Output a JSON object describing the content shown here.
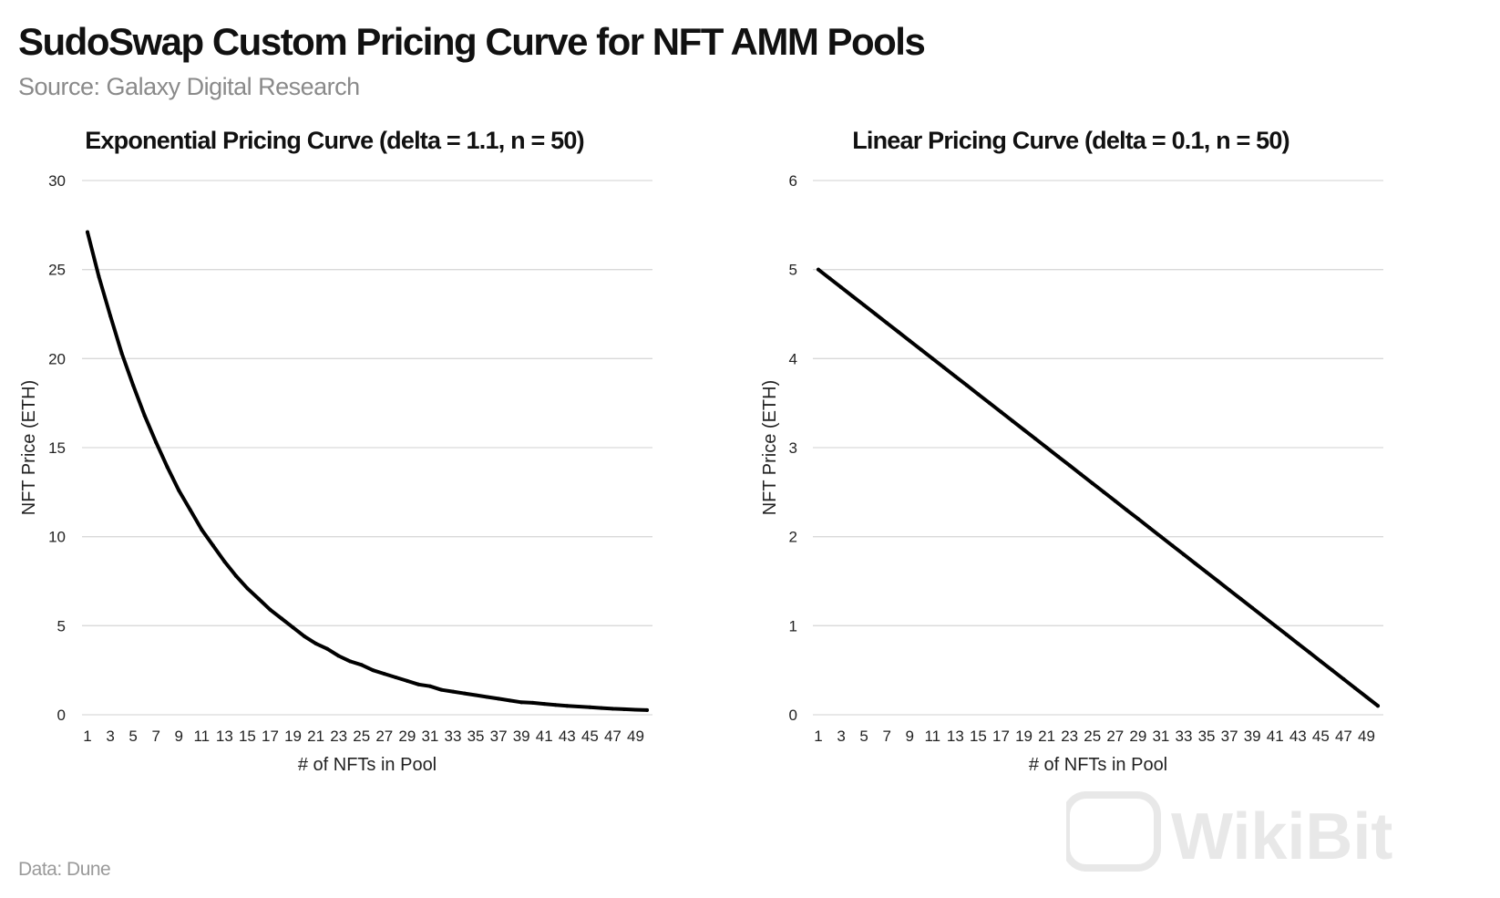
{
  "header": {
    "title": "SudoSwap Custom Pricing Curve for NFT AMM Pools",
    "subtitle": "Source: Galaxy Digital Research"
  },
  "footer": {
    "data_source": "Data: Dune"
  },
  "watermark": {
    "text": "WikiBit",
    "color": "#e8e8e8"
  },
  "chart_data": [
    {
      "type": "line",
      "title": "Exponential Pricing Curve (delta = 1.1, n = 50)",
      "xlabel": "# of NFTs in Pool",
      "ylabel": "NFT Price (ETH)",
      "ylim": [
        0,
        30
      ],
      "yticks": [
        0,
        5,
        10,
        15,
        20,
        25,
        30
      ],
      "xlim": [
        1,
        50
      ],
      "xtick_labels": [
        "1",
        "3",
        "5",
        "7",
        "9",
        "11",
        "13",
        "15",
        "17",
        "19",
        "21",
        "23",
        "25",
        "27",
        "29",
        "31",
        "33",
        "35",
        "37",
        "39",
        "41",
        "43",
        "45",
        "47",
        "49"
      ],
      "grid": true,
      "legend": "none",
      "series": [
        {
          "color": "#000000",
          "x": [
            1,
            2,
            3,
            4,
            5,
            6,
            7,
            8,
            9,
            10,
            11,
            12,
            13,
            14,
            15,
            16,
            17,
            18,
            19,
            20,
            21,
            22,
            23,
            24,
            25,
            26,
            27,
            28,
            29,
            30,
            31,
            32,
            33,
            34,
            35,
            36,
            37,
            38,
            39,
            40,
            41,
            42,
            43,
            44,
            45,
            46,
            47,
            48,
            49,
            50
          ],
          "values": [
            27.1,
            24.6,
            22.4,
            20.3,
            18.5,
            16.8,
            15.3,
            13.9,
            12.6,
            11.5,
            10.4,
            9.5,
            8.6,
            7.8,
            7.1,
            6.5,
            5.9,
            5.4,
            4.9,
            4.4,
            4.0,
            3.7,
            3.3,
            3.0,
            2.8,
            2.5,
            2.3,
            2.1,
            1.9,
            1.7,
            1.6,
            1.4,
            1.3,
            1.2,
            1.1,
            1.0,
            0.9,
            0.8,
            0.7,
            0.67,
            0.61,
            0.55,
            0.5,
            0.46,
            0.42,
            0.38,
            0.34,
            0.31,
            0.28,
            0.26
          ]
        }
      ]
    },
    {
      "type": "line",
      "title": "Linear Pricing Curve (delta = 0.1, n = 50)",
      "xlabel": "# of NFTs in Pool",
      "ylabel": "NFT Price (ETH)",
      "ylim": [
        0,
        6
      ],
      "yticks": [
        0,
        1,
        2,
        3,
        4,
        5,
        6
      ],
      "xlim": [
        1,
        50
      ],
      "xtick_labels": [
        "1",
        "3",
        "5",
        "7",
        "9",
        "11",
        "13",
        "15",
        "17",
        "19",
        "21",
        "23",
        "25",
        "27",
        "29",
        "31",
        "33",
        "35",
        "37",
        "39",
        "41",
        "43",
        "45",
        "47",
        "49"
      ],
      "grid": true,
      "legend": "none",
      "series": [
        {
          "color": "#000000",
          "x": [
            1,
            2,
            3,
            4,
            5,
            6,
            7,
            8,
            9,
            10,
            11,
            12,
            13,
            14,
            15,
            16,
            17,
            18,
            19,
            20,
            21,
            22,
            23,
            24,
            25,
            26,
            27,
            28,
            29,
            30,
            31,
            32,
            33,
            34,
            35,
            36,
            37,
            38,
            39,
            40,
            41,
            42,
            43,
            44,
            45,
            46,
            47,
            48,
            49,
            50
          ],
          "values": [
            5.0,
            4.9,
            4.8,
            4.7,
            4.6,
            4.5,
            4.4,
            4.3,
            4.2,
            4.1,
            4.0,
            3.9,
            3.8,
            3.7,
            3.6,
            3.5,
            3.4,
            3.3,
            3.2,
            3.1,
            3.0,
            2.9,
            2.8,
            2.7,
            2.6,
            2.5,
            2.4,
            2.3,
            2.2,
            2.1,
            2.0,
            1.9,
            1.8,
            1.7,
            1.6,
            1.5,
            1.4,
            1.3,
            1.2,
            1.1,
            1.0,
            0.9,
            0.8,
            0.7,
            0.6,
            0.5,
            0.4,
            0.3,
            0.2,
            0.1
          ]
        }
      ]
    }
  ]
}
